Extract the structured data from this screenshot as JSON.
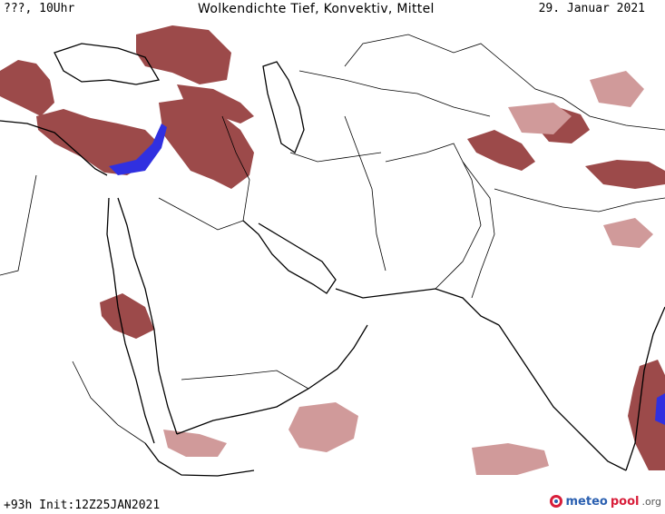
{
  "header": {
    "left": "???, 10Uhr",
    "title": "Wolkendichte  Tief, Konvektiv, Mittel",
    "date": "29. Januar 2021"
  },
  "footer": {
    "init": "+93h Init:12Z25JAN2021",
    "logo_meteo": "meteo",
    "logo_pool": "pool",
    "logo_org": ".org"
  },
  "colors": {
    "cloud_dense": "#9c4a4a",
    "cloud_light": "#d09a9a",
    "convective": "#3030e0",
    "background": "#ffffff"
  },
  "map": {
    "type": "cloud-density-forecast",
    "region": "Middle East / South Asia"
  }
}
